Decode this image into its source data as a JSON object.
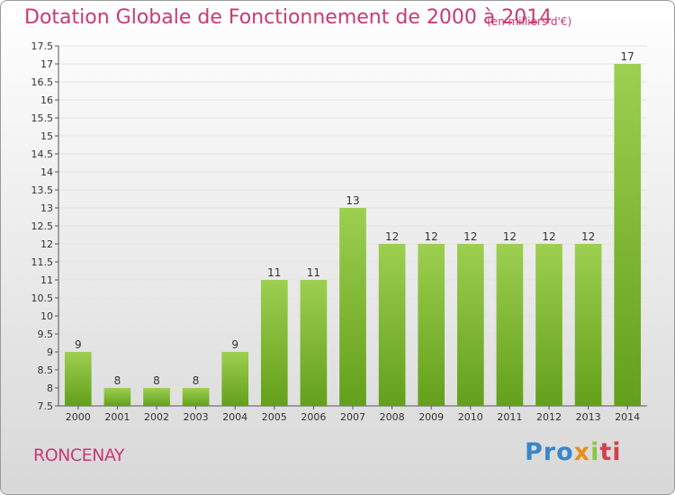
{
  "page": {
    "title": "Dotation Globale de Fonctionnement de 2000 à 2014",
    "unit": "(en milliers d'€)",
    "commune": "RONCENAY",
    "logo": {
      "part1": "Pro",
      "part2": "x",
      "part3": "i",
      "part4": "ti"
    }
  },
  "colors": {
    "bar_light": "#9dcf50",
    "bar_dark": "#63a01b",
    "title": "#c73b72"
  },
  "chart_data": {
    "type": "bar",
    "title": "Dotation Globale de Fonctionnement de 2000 à 2014",
    "subtitle": "(en milliers d'€)",
    "categories": [
      "2000",
      "2001",
      "2002",
      "2003",
      "2004",
      "2005",
      "2006",
      "2007",
      "2008",
      "2009",
      "2010",
      "2011",
      "2012",
      "2013",
      "2014"
    ],
    "values": [
      9,
      8,
      8,
      8,
      9,
      11,
      11,
      13,
      12,
      12,
      12,
      12,
      12,
      12,
      17
    ],
    "ylim": [
      7.5,
      17.5
    ],
    "yticks": [
      "7.5",
      "8",
      "8.5",
      "9",
      "9.5",
      "10",
      "10.5",
      "11",
      "11.5",
      "12",
      "12.5",
      "13",
      "13.5",
      "14",
      "14.5",
      "15",
      "15.5",
      "16",
      "16.5",
      "17",
      "17.5"
    ],
    "grid": true,
    "xlabel": "",
    "ylabel": ""
  }
}
